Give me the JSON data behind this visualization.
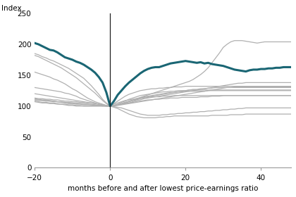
{
  "ylabel": "Index",
  "xlabel": "months before and after lowest price-earnings ratio",
  "xlim": [
    -20,
    48
  ],
  "ylim": [
    0,
    250
  ],
  "yticks": [
    0,
    50,
    100,
    150,
    200,
    250
  ],
  "xticks": [
    -20,
    0,
    20,
    40
  ],
  "vline_x": 0,
  "avg_color": "#1a6674",
  "avg_linewidth": 2.2,
  "gray_color": "#b0b0b0",
  "gray_linewidth": 0.9,
  "avg_x": [
    -20,
    -19,
    -18,
    -17,
    -16,
    -15,
    -14,
    -13,
    -12,
    -11,
    -10,
    -9,
    -8,
    -7,
    -6,
    -5,
    -4,
    -3,
    -2,
    -1,
    0,
    1,
    2,
    3,
    4,
    5,
    6,
    7,
    8,
    9,
    10,
    11,
    12,
    13,
    14,
    15,
    16,
    17,
    18,
    19,
    20,
    21,
    22,
    23,
    24,
    25,
    26,
    27,
    28,
    29,
    30,
    31,
    32,
    33,
    34,
    35,
    36,
    37,
    38,
    39,
    40,
    41,
    42,
    43,
    44,
    45,
    46,
    47,
    48
  ],
  "avg_y": [
    202,
    200,
    197,
    194,
    191,
    190,
    187,
    183,
    179,
    177,
    175,
    172,
    170,
    167,
    163,
    159,
    154,
    147,
    138,
    122,
    100,
    108,
    118,
    125,
    132,
    138,
    143,
    148,
    153,
    157,
    160,
    162,
    163,
    163,
    165,
    167,
    169,
    170,
    171,
    172,
    173,
    172,
    171,
    170,
    171,
    169,
    170,
    168,
    167,
    166,
    165,
    163,
    161,
    159,
    158,
    157,
    156,
    158,
    159,
    159,
    160,
    160,
    161,
    161,
    162,
    162,
    163,
    163,
    163
  ],
  "gray_lines": [
    {
      "y": [
        185,
        183,
        180,
        178,
        175,
        173,
        170,
        167,
        164,
        161,
        157,
        153,
        149,
        145,
        139,
        133,
        126,
        119,
        111,
        105,
        100,
        103,
        105,
        107,
        109,
        110,
        111,
        112,
        113,
        114,
        115,
        116,
        117,
        118,
        119,
        120,
        121,
        122,
        123,
        124,
        125,
        126,
        127,
        127,
        128,
        128,
        129,
        129,
        130,
        130,
        130,
        130,
        130,
        130,
        130,
        130,
        130,
        130,
        130,
        130,
        130,
        130,
        130,
        130,
        130,
        130,
        130,
        130,
        130
      ]
    },
    {
      "y": [
        182,
        180,
        177,
        174,
        171,
        168,
        165,
        162,
        158,
        154,
        150,
        146,
        141,
        136,
        131,
        126,
        121,
        115,
        109,
        104,
        100,
        104,
        108,
        112,
        116,
        119,
        121,
        123,
        125,
        126,
        127,
        128,
        128,
        129,
        129,
        130,
        130,
        131,
        131,
        131,
        132,
        132,
        132,
        132,
        132,
        132,
        132,
        132,
        132,
        132,
        132,
        132,
        132,
        132,
        132,
        132,
        132,
        132,
        132,
        132,
        132,
        132,
        132,
        132,
        132,
        132,
        132,
        132,
        132
      ]
    },
    {
      "y": [
        130,
        129,
        128,
        127,
        126,
        125,
        124,
        123,
        121,
        120,
        118,
        116,
        113,
        111,
        109,
        107,
        105,
        103,
        101,
        100,
        100,
        101,
        102,
        103,
        104,
        105,
        106,
        107,
        108,
        109,
        110,
        110,
        111,
        111,
        112,
        112,
        113,
        113,
        113,
        114,
        114,
        114,
        114,
        114,
        115,
        115,
        115,
        116,
        116,
        116,
        117,
        117,
        117,
        117,
        117,
        117,
        117,
        117,
        117,
        117,
        117,
        117,
        117,
        117,
        117,
        117,
        117,
        117,
        117
      ]
    },
    {
      "y": [
        120,
        119,
        118,
        117,
        116,
        115,
        114,
        113,
        112,
        111,
        110,
        109,
        108,
        107,
        106,
        105,
        104,
        103,
        102,
        101,
        100,
        101,
        102,
        103,
        105,
        107,
        109,
        111,
        113,
        115,
        116,
        117,
        118,
        119,
        120,
        121,
        122,
        122,
        123,
        123,
        124,
        124,
        124,
        124,
        124,
        124,
        125,
        125,
        125,
        125,
        125,
        125,
        125,
        125,
        125,
        125,
        125,
        125,
        125,
        125,
        125,
        125,
        125,
        125,
        125,
        125,
        125,
        125,
        125
      ]
    },
    {
      "y": [
        113,
        112,
        112,
        111,
        111,
        110,
        110,
        109,
        108,
        108,
        107,
        107,
        106,
        106,
        105,
        105,
        104,
        103,
        102,
        101,
        100,
        101,
        102,
        103,
        104,
        105,
        107,
        109,
        110,
        112,
        113,
        114,
        115,
        116,
        117,
        118,
        119,
        120,
        121,
        122,
        123,
        124,
        125,
        126,
        127,
        128,
        129,
        130,
        131,
        132,
        133,
        134,
        135,
        136,
        137,
        137,
        138,
        138,
        138,
        138,
        138,
        138,
        138,
        138,
        138,
        138,
        138,
        138,
        138
      ]
    },
    {
      "y": [
        110,
        109,
        109,
        108,
        108,
        107,
        107,
        106,
        106,
        105,
        105,
        104,
        104,
        103,
        103,
        102,
        102,
        101,
        101,
        100,
        100,
        100,
        101,
        102,
        103,
        104,
        105,
        106,
        107,
        108,
        109,
        110,
        111,
        112,
        113,
        114,
        115,
        116,
        117,
        118,
        119,
        120,
        121,
        122,
        123,
        124,
        125,
        126,
        127,
        128,
        129,
        130,
        130,
        131,
        131,
        131,
        131,
        131,
        131,
        131,
        131,
        131,
        131,
        131,
        131,
        131,
        131,
        131,
        131
      ]
    },
    {
      "y": [
        108,
        107,
        106,
        106,
        105,
        105,
        104,
        103,
        103,
        102,
        102,
        101,
        101,
        100,
        100,
        100,
        100,
        100,
        100,
        100,
        100,
        99,
        98,
        97,
        95,
        93,
        91,
        89,
        87,
        86,
        85,
        85,
        85,
        85,
        86,
        86,
        87,
        87,
        88,
        88,
        89,
        89,
        90,
        90,
        91,
        91,
        92,
        92,
        93,
        93,
        94,
        94,
        95,
        95,
        96,
        96,
        97,
        97,
        97,
        97,
        97,
        97,
        97,
        97,
        97,
        97,
        97,
        97,
        97
      ]
    },
    {
      "y": [
        107,
        106,
        105,
        105,
        104,
        104,
        103,
        103,
        102,
        101,
        101,
        100,
        100,
        100,
        100,
        100,
        100,
        100,
        100,
        100,
        100,
        98,
        96,
        93,
        90,
        87,
        85,
        83,
        82,
        81,
        81,
        81,
        81,
        82,
        82,
        83,
        83,
        84,
        84,
        84,
        84,
        84,
        84,
        84,
        84,
        84,
        84,
        85,
        85,
        85,
        85,
        85,
        86,
        86,
        86,
        86,
        87,
        87,
        87,
        87,
        87,
        87,
        87,
        87,
        87,
        87,
        87,
        87,
        87
      ]
    },
    {
      "y": [
        110,
        110,
        109,
        109,
        108,
        108,
        107,
        107,
        106,
        106,
        105,
        105,
        104,
        104,
        103,
        103,
        102,
        101,
        101,
        100,
        100,
        101,
        102,
        104,
        106,
        108,
        110,
        112,
        114,
        116,
        118,
        120,
        122,
        124,
        126,
        128,
        130,
        132,
        134,
        136,
        138,
        140,
        143,
        147,
        151,
        156,
        162,
        170,
        178,
        186,
        195,
        200,
        204,
        206,
        206,
        206,
        205,
        204,
        203,
        202,
        203,
        204,
        204,
        204,
        204,
        204,
        204,
        204,
        204
      ]
    },
    {
      "y": [
        112,
        111,
        110,
        110,
        109,
        108,
        107,
        106,
        105,
        104,
        104,
        103,
        103,
        102,
        102,
        102,
        101,
        101,
        100,
        100,
        100,
        101,
        102,
        104,
        106,
        107,
        109,
        110,
        112,
        113,
        114,
        115,
        115,
        115,
        116,
        116,
        116,
        117,
        117,
        117,
        117,
        117,
        117,
        117,
        117,
        117,
        117,
        117,
        117,
        117,
        117,
        117,
        117,
        117,
        117,
        117,
        117,
        117,
        117,
        117,
        117,
        117,
        117,
        117,
        117,
        117,
        117,
        117,
        117
      ]
    },
    {
      "y": [
        155,
        153,
        151,
        149,
        147,
        144,
        142,
        139,
        136,
        132,
        128,
        125,
        121,
        117,
        113,
        110,
        107,
        105,
        103,
        101,
        100,
        101,
        103,
        106,
        108,
        111,
        113,
        115,
        117,
        118,
        119,
        120,
        121,
        122,
        123,
        123,
        124,
        124,
        125,
        125,
        125,
        126,
        126,
        126,
        126,
        126,
        126,
        126,
        126,
        126,
        126,
        126,
        126,
        126,
        126,
        126,
        126,
        126,
        126,
        126,
        126,
        126,
        126,
        126,
        126,
        126,
        126,
        126,
        126
      ]
    }
  ]
}
